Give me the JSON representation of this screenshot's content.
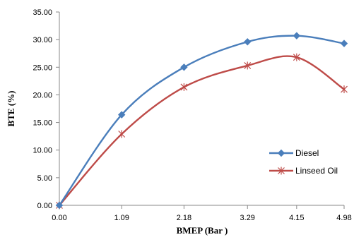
{
  "chart_data": {
    "type": "line",
    "title": "",
    "xlabel": "BMEP  (Bar )",
    "ylabel": "BTE  (%)",
    "x": [
      0.0,
      1.09,
      2.18,
      3.29,
      4.15,
      4.98
    ],
    "x_tick_labels": [
      "0.00",
      "1.09",
      "2.18",
      "3.29",
      "4.15",
      "4.98"
    ],
    "ylim": [
      0,
      35
    ],
    "y_ticks": [
      0,
      5,
      10,
      15,
      20,
      25,
      30,
      35
    ],
    "y_tick_labels": [
      "0.00",
      "5.00",
      "10.00",
      "15.00",
      "20.00",
      "25.00",
      "30.00",
      "35.00"
    ],
    "grid": false,
    "smooth": true,
    "legend_position": "right-middle",
    "series": [
      {
        "name": "Diesel",
        "color": "#4A7EBB",
        "marker": "diamond",
        "values": [
          0.0,
          16.4,
          25.0,
          29.6,
          30.7,
          29.3
        ]
      },
      {
        "name": "Linseed Oil",
        "color": "#BE4B48",
        "marker": "star",
        "values": [
          0.0,
          12.9,
          21.4,
          25.3,
          26.8,
          21.0
        ]
      }
    ]
  }
}
